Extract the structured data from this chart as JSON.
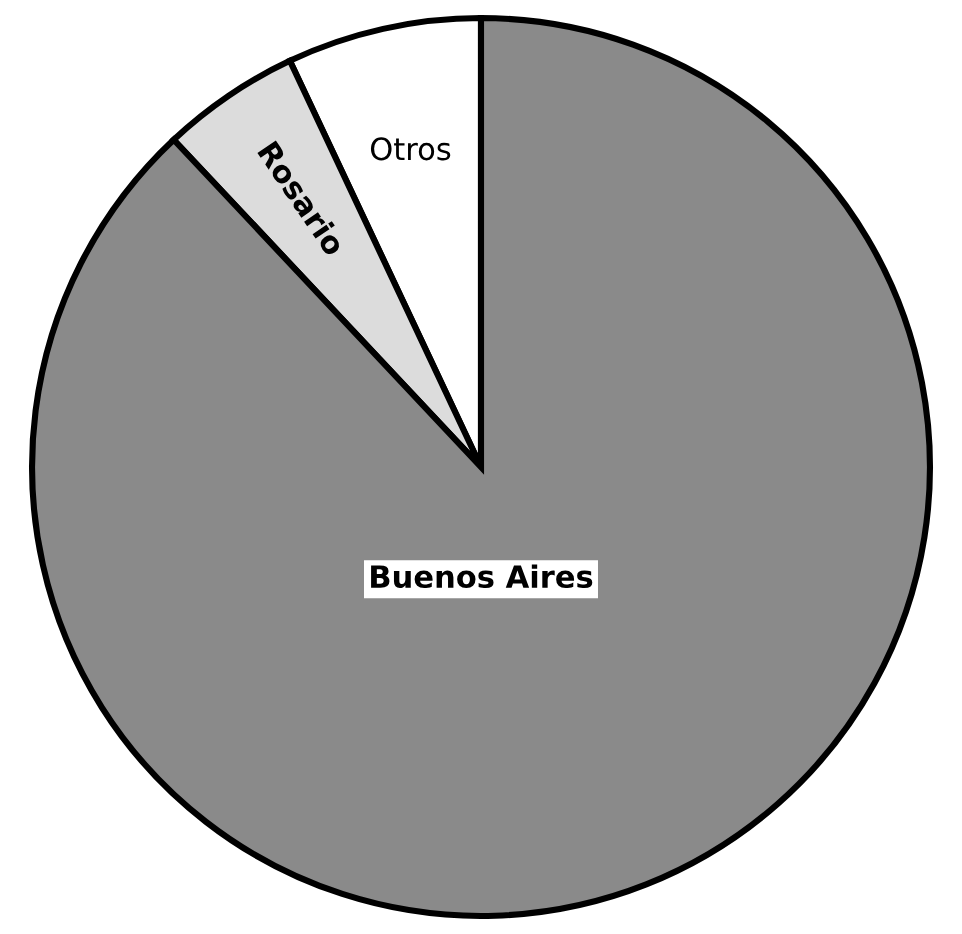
{
  "chart_data": {
    "type": "pie",
    "categories": [
      "Otros",
      "Rosario",
      "Buenos Aires"
    ],
    "values": [
      7,
      5,
      88
    ],
    "colors": [
      "#ffffff",
      "#dcdcdc",
      "#8a8a8a"
    ],
    "legend": false
  }
}
